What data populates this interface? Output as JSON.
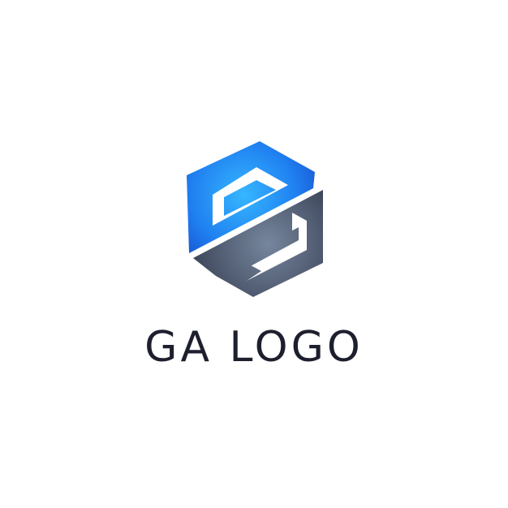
{
  "logo": {
    "wordmark": "GA LOGO",
    "icon": "hexagon-monogram-icon",
    "colors": {
      "blue_light": "#33b4ff",
      "blue_dark": "#1545c4",
      "slate_light": "#6d7c93",
      "slate_dark": "#2e3648",
      "text": "#1e1f2e",
      "background": "#ffffff"
    }
  }
}
